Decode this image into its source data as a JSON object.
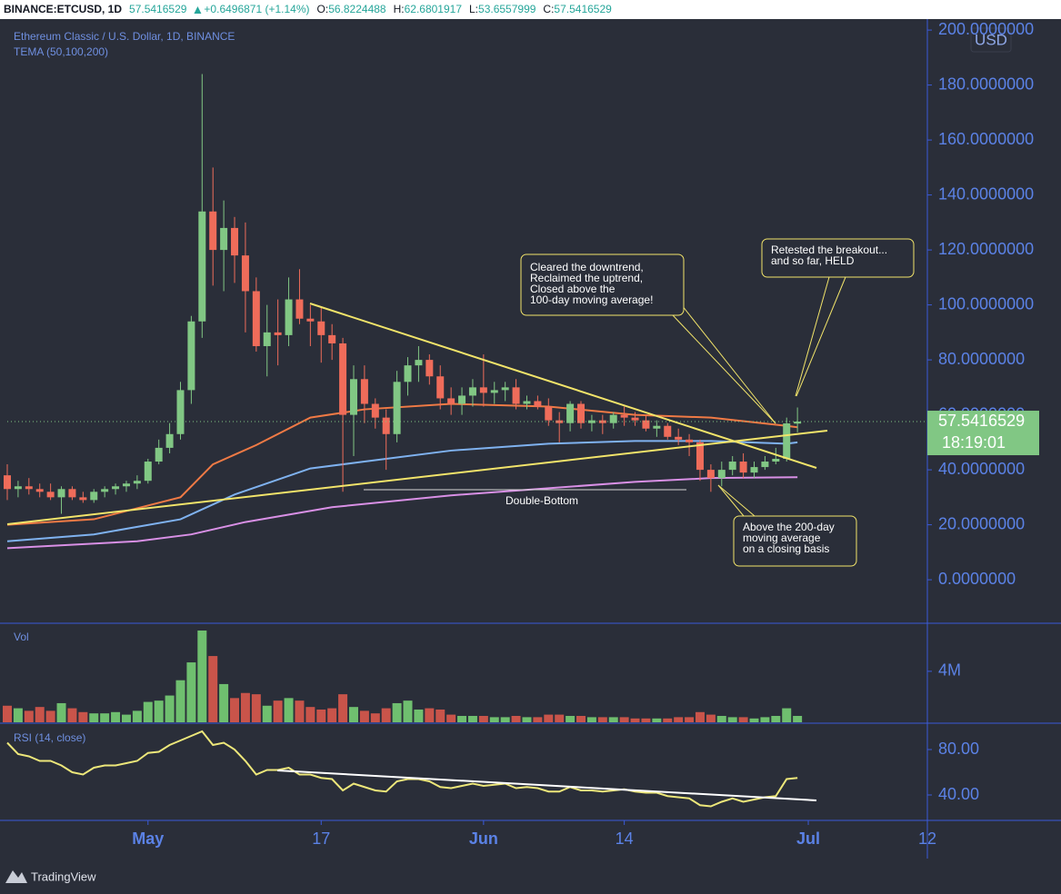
{
  "header": {
    "symbol": "BINANCE:ETCUSD, 1D",
    "price": 57.5416529,
    "change": "+0.6496871 (+1.14%)",
    "ohlc": [
      {
        "label": "O:",
        "value": 56.8224488
      },
      {
        "label": "H:",
        "value": 62.6801917
      },
      {
        "label": "L:",
        "value": 53.6557999
      },
      {
        "label": "C:",
        "value": 57.5416529
      }
    ]
  },
  "footer": {
    "brand": "TradingView"
  },
  "chart_data": [
    {
      "type": "candlestick",
      "title": "Ethereum Classic / U.S. Dollar, 1D, BINANCE",
      "subtitle": "TEMA (50,100,200)",
      "currency": "USD",
      "up_color": "#81c784",
      "down_color": "#ef6c5a",
      "x": [
        "04-18",
        "04-19",
        "04-20",
        "04-21",
        "04-22",
        "04-23",
        "04-24",
        "04-25",
        "04-26",
        "04-27",
        "04-28",
        "04-29",
        "04-30",
        "05-01",
        "05-02",
        "05-03",
        "05-04",
        "05-05",
        "05-06",
        "05-07",
        "05-08",
        "05-09",
        "05-10",
        "05-11",
        "05-12",
        "05-13",
        "05-14",
        "05-15",
        "05-16",
        "05-17",
        "05-18",
        "05-19",
        "05-20",
        "05-21",
        "05-22",
        "05-23",
        "05-24",
        "05-25",
        "05-26",
        "05-27",
        "05-28",
        "05-29",
        "05-30",
        "05-31",
        "06-01",
        "06-02",
        "06-03",
        "06-04",
        "06-05",
        "06-06",
        "06-07",
        "06-08",
        "06-09",
        "06-10",
        "06-11",
        "06-12",
        "06-13",
        "06-14",
        "06-15",
        "06-16",
        "06-17",
        "06-18",
        "06-19",
        "06-20",
        "06-21",
        "06-22",
        "06-23",
        "06-24",
        "06-25",
        "06-26",
        "06-27",
        "06-28",
        "06-29",
        "06-30"
      ],
      "open": [
        38,
        33,
        34,
        33,
        32,
        30,
        33,
        30,
        29,
        32,
        33,
        34,
        35,
        36,
        43,
        48,
        53,
        69,
        94,
        134,
        120,
        128,
        118,
        105,
        85,
        90,
        89,
        102,
        95,
        94,
        89,
        86,
        60,
        73,
        64,
        59,
        53,
        72,
        78,
        80,
        74,
        66,
        64,
        67,
        70,
        68,
        69,
        70,
        64,
        65,
        63,
        58,
        57,
        64,
        57,
        58,
        57,
        60,
        59,
        58,
        55,
        56,
        52,
        51,
        50,
        40,
        37,
        40,
        43,
        39,
        41,
        43,
        44,
        56.8224488
      ],
      "high": [
        42,
        36,
        37,
        35,
        35,
        34,
        34,
        32,
        33,
        34,
        35,
        36,
        38,
        44,
        51,
        57,
        72,
        96,
        184,
        150,
        138,
        132,
        130,
        110,
        100,
        102,
        110,
        113,
        100,
        99,
        93,
        88,
        78,
        78,
        66,
        62,
        76,
        81,
        85,
        82,
        78,
        70,
        70,
        73,
        82,
        72,
        72,
        73,
        67,
        67,
        66,
        61,
        65,
        65,
        60,
        60,
        61,
        63,
        61,
        60,
        58,
        57,
        55,
        53,
        51,
        42,
        43,
        45,
        46,
        43,
        45,
        48,
        59,
        62.6801917
      ],
      "low": [
        29,
        30,
        31,
        30,
        29,
        24,
        29,
        28,
        28,
        30,
        31,
        32,
        33,
        35,
        42,
        46,
        51,
        64,
        88,
        107,
        105,
        108,
        90,
        83,
        74,
        78,
        85,
        93,
        85,
        79,
        80,
        32,
        45,
        57,
        55,
        40,
        50,
        67,
        72,
        71,
        62,
        60,
        60,
        63,
        63,
        64,
        65,
        62,
        62,
        62,
        56,
        50,
        54,
        55,
        54,
        53,
        55,
        56,
        56,
        54,
        52,
        51,
        49,
        45,
        36,
        32,
        34,
        38,
        37,
        37,
        40,
        42,
        43,
        53.6557999
      ],
      "close": [
        33,
        34,
        33,
        32,
        30,
        33,
        30,
        29,
        32,
        33,
        34,
        35,
        36,
        43,
        48,
        53,
        69,
        94,
        134,
        120,
        128,
        118,
        105,
        85,
        90,
        89,
        102,
        95,
        94,
        89,
        86,
        60,
        73,
        64,
        59,
        53,
        72,
        78,
        80,
        74,
        66,
        64,
        67,
        70,
        68,
        69,
        70,
        64,
        65,
        63,
        58,
        57,
        64,
        57,
        58,
        57,
        60,
        59,
        58,
        55,
        56,
        52,
        51,
        50,
        40,
        37,
        40,
        43,
        39,
        41,
        43,
        44,
        56.8919658,
        57.5416529
      ],
      "lines": [
        {
          "color": "#f07a45",
          "x": [
            "04-18",
            "04-26",
            "05-04",
            "05-07",
            "05-11",
            "05-16",
            "05-21",
            "05-29",
            "06-07",
            "06-15",
            "06-22",
            "06-29",
            "06-30"
          ],
          "values": [
            20,
            22,
            30,
            42,
            49,
            59,
            62,
            64,
            63,
            60,
            59,
            56,
            55.5
          ]
        },
        {
          "color": "#7fb2f0",
          "x": [
            "04-18",
            "04-26",
            "05-04",
            "05-09",
            "05-16",
            "05-21",
            "05-29",
            "06-07",
            "06-15",
            "06-22",
            "06-29",
            "06-30"
          ],
          "values": [
            14,
            16.5,
            22,
            31,
            40.5,
            43,
            47,
            49.5,
            50.5,
            50.5,
            49.5,
            50
          ]
        },
        {
          "color": "#d990e6",
          "x": [
            "04-18",
            "04-30",
            "05-05",
            "05-10",
            "05-18",
            "05-29",
            "06-07",
            "06-15",
            "06-22",
            "06-30"
          ],
          "values": [
            11.5,
            14,
            16.5,
            21,
            26.4,
            30.7,
            33.3,
            35.6,
            37,
            37.3
          ]
        }
      ],
      "last_price": 57.5416529,
      "countdown": "18:19:01",
      "xlim": [
        "04-18",
        "07-12"
      ],
      "xticks": [
        {
          "value": "05-01",
          "label": "May"
        },
        {
          "value": "05-17",
          "label": "17"
        },
        {
          "value": "06-01",
          "label": "Jun"
        },
        {
          "value": "06-14",
          "label": "14"
        },
        {
          "value": "07-01",
          "label": "Jul"
        },
        {
          "value": "07-12",
          "label": "12"
        }
      ],
      "ylim": [
        -15.5,
        204
      ],
      "yticks": [
        {
          "value": 0,
          "label": "0.0000000"
        },
        {
          "value": 20,
          "label": "20.0000000"
        },
        {
          "value": 40,
          "label": "40.0000000"
        },
        {
          "value": 60,
          "label": "60.0000000"
        },
        {
          "value": 80,
          "label": "80.0000000"
        },
        {
          "value": 100,
          "label": "100.0000000"
        },
        {
          "value": 120,
          "label": "120.0000000"
        },
        {
          "value": 140,
          "label": "140.0000000"
        },
        {
          "value": 160,
          "label": "160.0000000"
        },
        {
          "value": 180,
          "label": "180.0000000"
        },
        {
          "value": 200,
          "label": "200.0000000"
        }
      ],
      "grid": false,
      "annotations": [
        {
          "lines": [
            "Cleared the downtrend,",
            "Reclaimed the uptrend,",
            "Closed above the",
            "100-day moving average!"
          ]
        },
        {
          "lines": [
            "Retested the breakout...",
            "and so far, HELD"
          ]
        },
        {
          "lines": [
            "Above the 200-day",
            "moving average",
            "on a closing basis"
          ]
        },
        {
          "lines": [
            "Double-Bottom"
          ]
        }
      ]
    },
    {
      "type": "bar",
      "title": "Vol",
      "up_color": "#6fbf6f",
      "down_color": "#c9544a",
      "values": [
        1300000,
        1100000,
        900000,
        1200000,
        900000,
        1500000,
        1100000,
        800000,
        700000,
        700000,
        800000,
        600000,
        900000,
        1600000,
        1700000,
        2100000,
        3300000,
        4700000,
        7200000,
        5200000,
        3000000,
        1900000,
        2300000,
        2200000,
        1300000,
        1700000,
        1900000,
        1700000,
        1200000,
        1000000,
        1100000,
        2200000,
        1200000,
        900000,
        700000,
        1100000,
        1500000,
        1700000,
        1000000,
        1100000,
        1000000,
        600000,
        500000,
        500000,
        500000,
        400000,
        400000,
        500000,
        400000,
        400000,
        600000,
        600000,
        500000,
        500000,
        400000,
        400000,
        400000,
        400000,
        300000,
        300000,
        300000,
        300000,
        400000,
        400000,
        800000,
        600000,
        500000,
        400000,
        400000,
        300000,
        400000,
        500000,
        1100000,
        500000
      ],
      "ylim": [
        0,
        7700000
      ],
      "yticks": [
        {
          "value": 4000000,
          "label": "4M"
        }
      ]
    },
    {
      "type": "line",
      "title": "RSI (14, close)",
      "color": "#ede77a",
      "values": [
        86,
        76,
        74,
        70,
        70,
        66,
        60,
        58,
        64,
        66,
        66,
        68,
        70,
        77,
        78,
        84,
        88,
        92,
        96,
        84,
        86,
        80,
        70,
        58,
        62,
        62,
        64,
        58,
        58,
        55,
        54,
        44,
        50,
        47,
        44,
        43,
        52,
        54,
        54,
        52,
        47,
        46,
        48,
        50,
        48,
        49,
        50,
        46,
        47,
        46,
        43,
        43,
        47,
        44,
        44,
        43,
        44,
        45,
        43,
        42,
        42,
        39,
        38,
        37,
        31,
        30,
        34,
        37,
        34,
        36,
        38,
        39,
        54,
        55
      ],
      "ylim": [
        17.6,
        102.4
      ],
      "yticks": [
        {
          "value": 80,
          "label": "80.00"
        },
        {
          "value": 40,
          "label": "40.00"
        }
      ]
    }
  ]
}
